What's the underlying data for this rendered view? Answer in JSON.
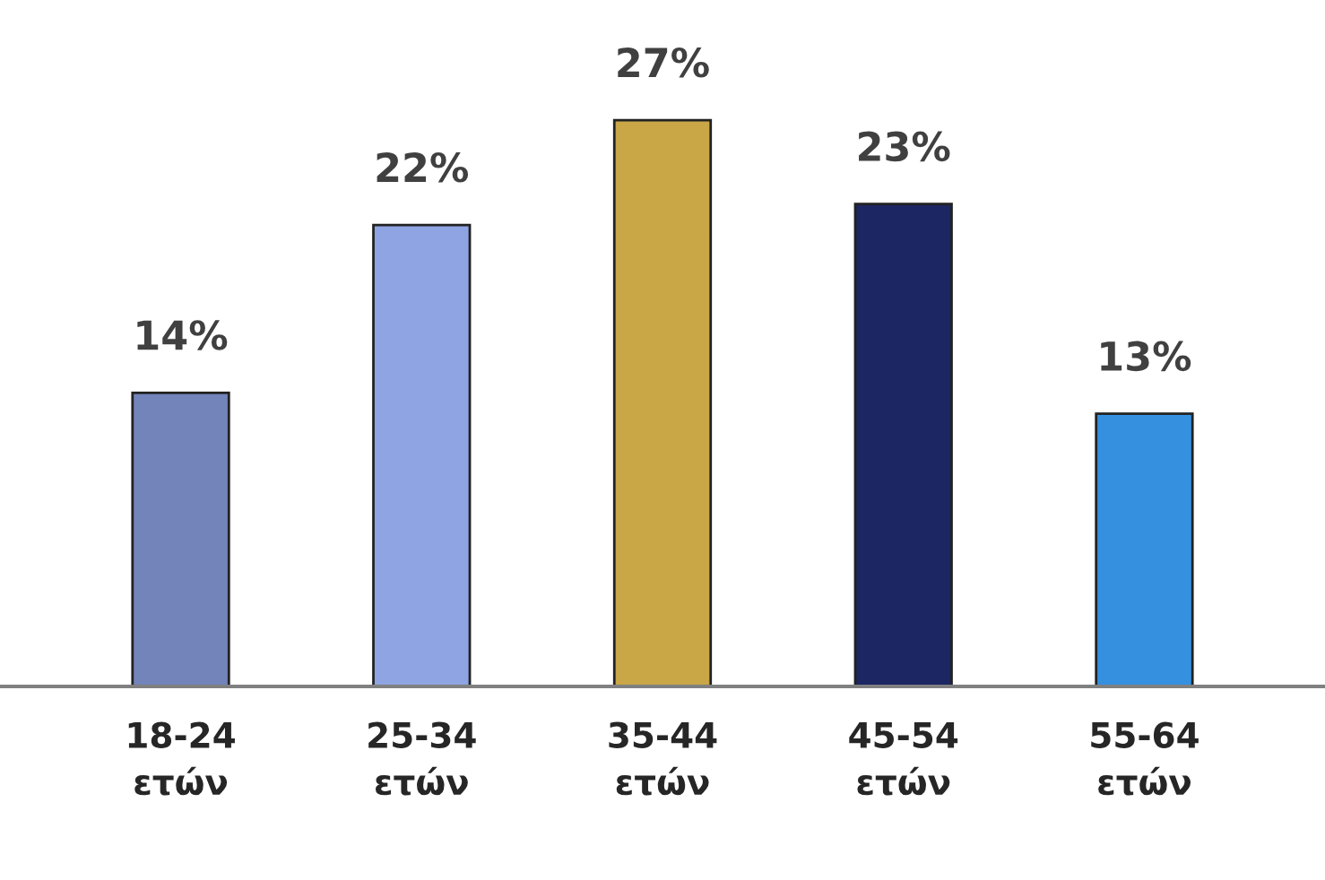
{
  "chart_data": {
    "type": "bar",
    "categories": [
      "18-24\nετών",
      "25-34\nετών",
      "35-44\nετών",
      "45-54\nετών",
      "55-64\nετών"
    ],
    "values": [
      14,
      22,
      27,
      23,
      13
    ],
    "colors": [
      "#7384bb",
      "#8fa4e2",
      "#c9a646",
      "#1b2662",
      "#3590e0"
    ],
    "value_labels": [
      "14%",
      "22%",
      "27%",
      "23%",
      "13%"
    ],
    "grid": false,
    "legend": false
  }
}
